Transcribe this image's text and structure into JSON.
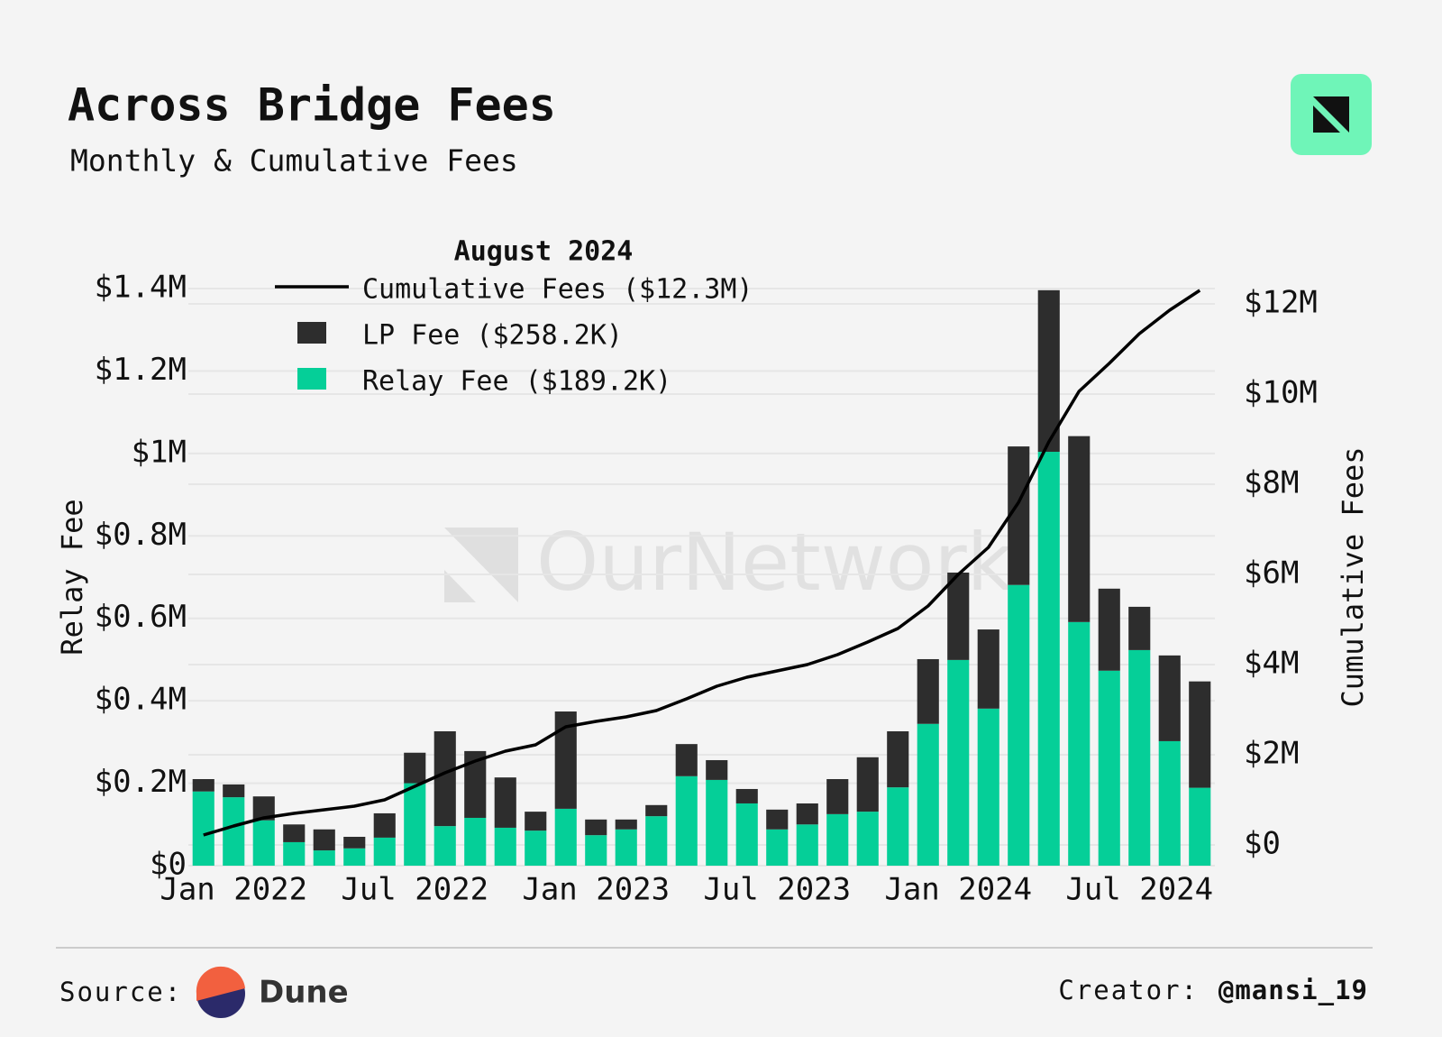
{
  "chart_data": {
    "type": "stacked_bar_line",
    "title": "Across Bridge Fees",
    "subtitle": "Monthly & Cumulative Fees",
    "legend_title": "August 2024",
    "ylabel": "Relay Fee",
    "y2label": "Cumulative Fees",
    "watermark": "OurNetwork",
    "categories": [
      null,
      "Jan 2022",
      null,
      null,
      null,
      null,
      null,
      "Jul 2022",
      null,
      null,
      null,
      null,
      null,
      "Jan 2023",
      null,
      null,
      null,
      null,
      null,
      "Jul 2023",
      null,
      null,
      null,
      null,
      null,
      "Jan 2024",
      null,
      null,
      null,
      null,
      null,
      "Jul 2024",
      null,
      null
    ],
    "series": [
      {
        "name": "Relay Fee ($189.2K)",
        "color": "#05cf98",
        "kind": "bar",
        "values": [
          0.18,
          0.166,
          0.11,
          0.057,
          0.037,
          0.042,
          0.068,
          0.2,
          0.096,
          0.116,
          0.092,
          0.085,
          0.138,
          0.074,
          0.088,
          0.12,
          0.217,
          0.208,
          0.151,
          0.088,
          0.1,
          0.125,
          0.131,
          0.19,
          0.344,
          0.499,
          0.381,
          0.681,
          1.004,
          0.591,
          0.473,
          0.523,
          0.302,
          0.189
        ]
      },
      {
        "name": "LP Fee ($258.2K)",
        "color": "#2d2d2d",
        "kind": "bar",
        "values": [
          0.03,
          0.031,
          0.058,
          0.043,
          0.051,
          0.028,
          0.059,
          0.074,
          0.23,
          0.162,
          0.122,
          0.046,
          0.236,
          0.038,
          0.024,
          0.027,
          0.078,
          0.048,
          0.035,
          0.048,
          0.051,
          0.085,
          0.132,
          0.136,
          0.157,
          0.212,
          0.192,
          0.336,
          0.392,
          0.451,
          0.199,
          0.105,
          0.208,
          0.258
        ]
      },
      {
        "name": "Cumulative Fees ($12.3M)",
        "color": "#000000",
        "kind": "line",
        "axis": "y2",
        "values": [
          0.22,
          0.42,
          0.6,
          0.7,
          0.78,
          0.86,
          1.0,
          1.3,
          1.6,
          1.86,
          2.08,
          2.22,
          2.62,
          2.74,
          2.84,
          2.98,
          3.24,
          3.52,
          3.72,
          3.86,
          4.0,
          4.22,
          4.5,
          4.8,
          5.3,
          6.0,
          6.6,
          7.6,
          8.94,
          10.06,
          10.68,
          11.34,
          11.86,
          12.3
        ]
      }
    ],
    "ylim": [
      0,
      1.4
    ],
    "yticks": [
      {
        "value": 0,
        "label": "$0"
      },
      {
        "value": 0.2,
        "label": "$0.2M"
      },
      {
        "value": 0.4,
        "label": "$0.4M"
      },
      {
        "value": 0.6,
        "label": "$0.6M"
      },
      {
        "value": 0.8,
        "label": "$0.8M"
      },
      {
        "value": 1,
        "label": "$1M"
      },
      {
        "value": 1.2,
        "label": "$1.2M"
      },
      {
        "value": 1.4,
        "label": "$1.4M"
      }
    ],
    "y2lim": [
      -0.46,
      12.34
    ],
    "y2ticks": [
      {
        "value": 0,
        "label": "$0"
      },
      {
        "value": 2,
        "label": "$2M"
      },
      {
        "value": 4,
        "label": "$4M"
      },
      {
        "value": 6,
        "label": "$6M"
      },
      {
        "value": 8,
        "label": "$8M"
      },
      {
        "value": 10,
        "label": "$10M"
      },
      {
        "value": 12,
        "label": "$12M"
      }
    ],
    "grid": true,
    "legend": "upper left"
  },
  "footer": {
    "source_label": "Source:",
    "source": "Dune",
    "creator_label": "Creator:",
    "creator": "@mansi_19"
  }
}
